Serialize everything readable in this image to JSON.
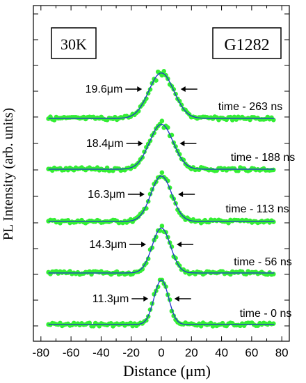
{
  "chart_data": {
    "type": "scatter",
    "title": "",
    "xlabel": "Distance (μm)",
    "ylabel": "PL Intensity (arb. units)",
    "xlim": [
      -85,
      85
    ],
    "xticks": [
      -80,
      -60,
      -40,
      -20,
      0,
      20,
      40,
      60,
      80
    ],
    "y_tick_labels_shown": false,
    "grid": false,
    "annotations": {
      "temperature": "30K",
      "sample": "G1282"
    },
    "marker_color": "#33ee33",
    "fit_color": "#2233cc",
    "series": [
      {
        "name": "time - 0 ns",
        "width_label": "11.3μm",
        "fwhm_um": 11.3,
        "peak": 0.94
      },
      {
        "name": "time - 56 ns",
        "width_label": "14.3μm",
        "fwhm_um": 14.3,
        "peak": 0.95
      },
      {
        "name": "time - 113 ns",
        "width_label": "16.3μm",
        "fwhm_um": 16.3,
        "peak": 0.96
      },
      {
        "name": "time - 188 ns",
        "width_label": "18.4μm",
        "fwhm_um": 18.4,
        "peak": 0.95
      },
      {
        "name": "time - 263 ns",
        "width_label": "19.6μm",
        "fwhm_um": 19.6,
        "peak": 0.96
      }
    ]
  }
}
